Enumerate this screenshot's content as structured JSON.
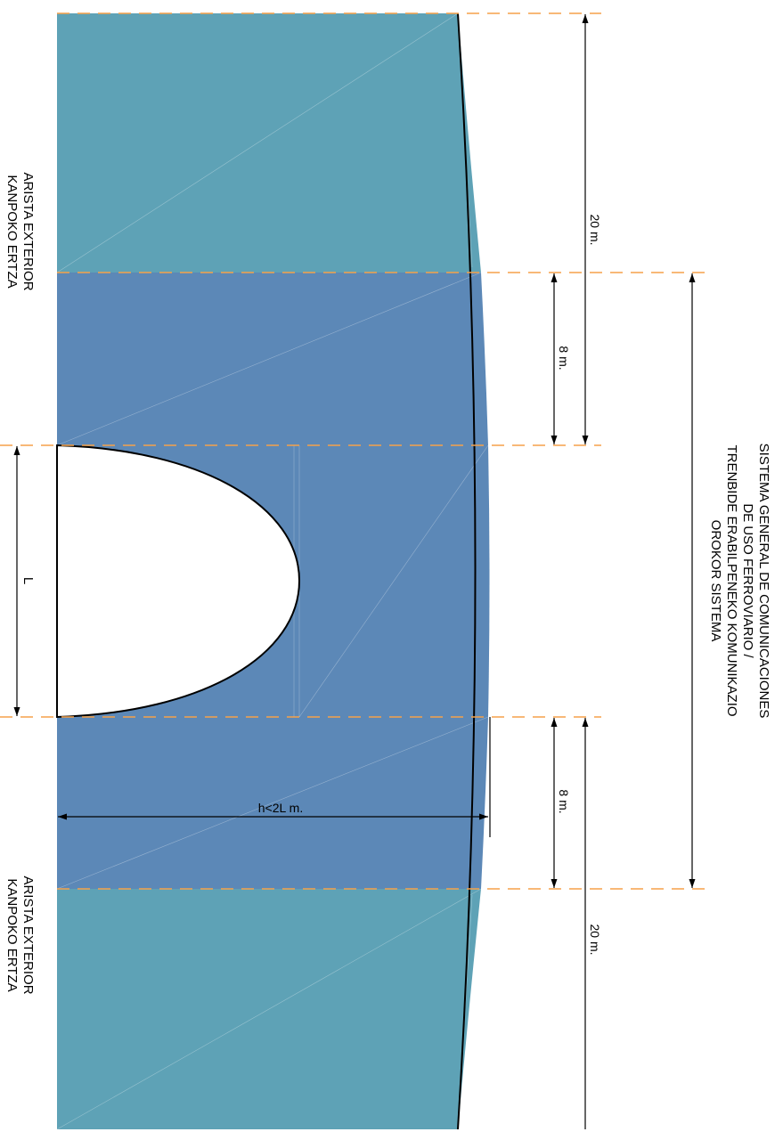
{
  "labels": {
    "edge_top_line1": "ARISTA EXTERIOR",
    "edge_top_line2": "KANPOKO ERTZA",
    "edge_bottom_line1": "ARISTA EXTERIOR",
    "edge_bottom_line2": "KANPOKO ERTZA",
    "system_line1": "SISTEMA GENERAL DE COMUNICACIONES",
    "system_line2": "DE USO FERROVIARIO /",
    "system_line3": "TRENBIDE ERABILPENEKO KOMUNIKAZIO",
    "system_line4": "OROKOR SISTEMA",
    "dim_20_top": "20 m.",
    "dim_8_top": "8 m.",
    "dim_8_bottom": "8 m.",
    "dim_20_bottom": "20 m.",
    "dim_L": "L",
    "dim_h": "h<2L m."
  },
  "colors": {
    "outer_zone": "#5ea2b6",
    "inner_zone": "#5c88b7",
    "guide_line": "#f5a14a",
    "line": "#000000"
  }
}
